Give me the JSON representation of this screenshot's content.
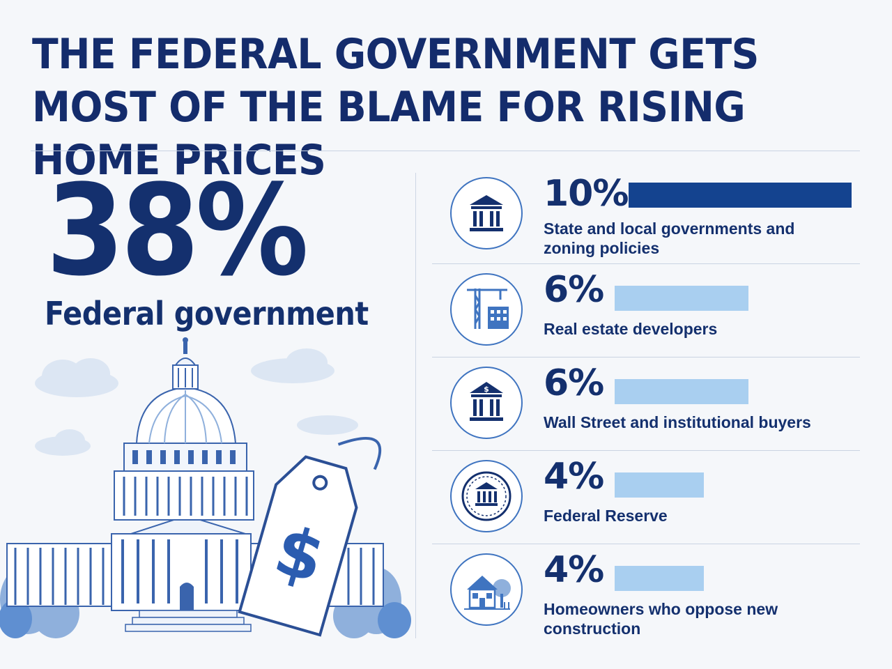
{
  "title": "THE FEDERAL GOVERNMENT GETS MOST OF THE BLAME FOR RISING HOME PRICES",
  "headline": {
    "value": "38%",
    "label": "Federal government",
    "illustration": "capitol-building-with-price-tag",
    "tag_symbol": "$"
  },
  "colors": {
    "navy": "#14306e",
    "bar_dark": "#14438f",
    "bar_light": "#a9cff0",
    "accent": "#3f74c0"
  },
  "chart_data": {
    "type": "bar",
    "title": "THE FEDERAL GOVERNMENT GETS MOST OF THE BLAME FOR RISING HOME PRICES",
    "unit": "%",
    "headline": {
      "category": "Federal government",
      "value": 38
    },
    "categories": [
      "State and local governments and zoning policies",
      "Real estate developers",
      "Wall Street and institutional buyers",
      "Federal Reserve",
      "Homeowners who oppose new construction"
    ],
    "values": [
      10,
      6,
      6,
      4,
      4
    ],
    "value_labels": [
      "10%",
      "6%",
      "6%",
      "4%",
      "4%"
    ],
    "bar_colors": [
      "dark",
      "light",
      "light",
      "light",
      "light"
    ],
    "icons": [
      "government-building-icon",
      "construction-crane-icon",
      "bank-dollar-icon",
      "federal-reserve-seal-icon",
      "house-icon"
    ]
  }
}
